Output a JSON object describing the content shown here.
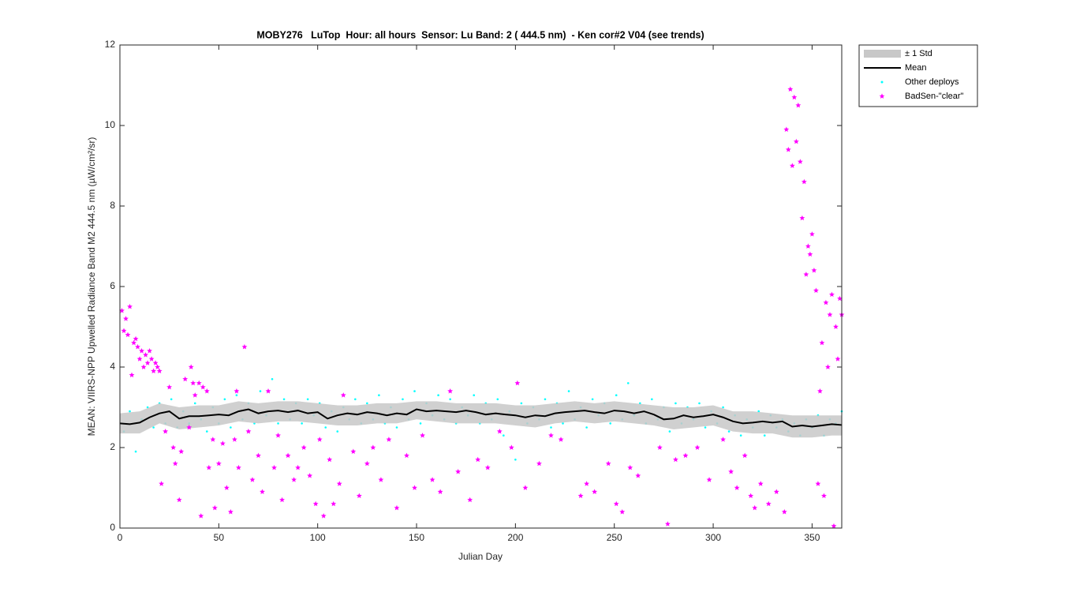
{
  "chart_data": {
    "type": "scatter",
    "title": "MOBY276   LuTop  Hour: all hours  Sensor: Lu Band: 2 ( 444.5 nm)  - Ken cor#2 V04 (see trends)",
    "x_label": "Julian Day",
    "y_label": "MEAN: VIIRS-NPP Upwelled Radiance Band M2 444.5 nm (µW/cm²/sr)",
    "xlim": [
      0,
      365
    ],
    "xticks": [
      0,
      50,
      100,
      150,
      200,
      250,
      300,
      350
    ],
    "ylim": [
      0,
      12
    ],
    "yticks": [
      0,
      2,
      4,
      6,
      8,
      10,
      12
    ],
    "legend": "outside-northeast",
    "series": [
      {
        "name": "± 1 Std",
        "type": "band",
        "color": "#c8c8c8",
        "x": [
          0,
          10,
          20,
          30,
          40,
          50,
          60,
          70,
          80,
          90,
          100,
          110,
          120,
          130,
          140,
          150,
          160,
          170,
          180,
          190,
          200,
          210,
          220,
          230,
          240,
          250,
          260,
          270,
          280,
          290,
          300,
          310,
          320,
          330,
          340,
          350,
          360,
          365
        ],
        "upper": [
          2.85,
          2.9,
          3.1,
          3.0,
          3.05,
          3.05,
          3.15,
          3.1,
          3.15,
          3.15,
          3.1,
          3.05,
          3.05,
          3.1,
          3.1,
          3.15,
          3.15,
          3.1,
          3.1,
          3.1,
          3.05,
          3.05,
          3.1,
          3.15,
          3.1,
          3.15,
          3.1,
          3.05,
          3.0,
          3.0,
          3.05,
          2.9,
          2.9,
          2.85,
          2.8,
          2.8,
          2.8,
          2.8
        ],
        "lower": [
          2.35,
          2.35,
          2.6,
          2.45,
          2.5,
          2.55,
          2.65,
          2.6,
          2.65,
          2.65,
          2.6,
          2.55,
          2.55,
          2.6,
          2.6,
          2.7,
          2.65,
          2.6,
          2.6,
          2.6,
          2.55,
          2.5,
          2.6,
          2.65,
          2.6,
          2.65,
          2.6,
          2.55,
          2.45,
          2.5,
          2.55,
          2.4,
          2.35,
          2.35,
          2.25,
          2.25,
          2.3,
          2.3
        ]
      },
      {
        "name": "Mean",
        "type": "line",
        "color": "#000000",
        "x": [
          0,
          5,
          10,
          15,
          20,
          25,
          30,
          35,
          40,
          45,
          50,
          55,
          60,
          65,
          70,
          75,
          80,
          85,
          90,
          95,
          100,
          105,
          110,
          115,
          120,
          125,
          130,
          135,
          140,
          145,
          150,
          155,
          160,
          165,
          170,
          175,
          180,
          185,
          190,
          195,
          200,
          205,
          210,
          215,
          220,
          225,
          230,
          235,
          240,
          245,
          250,
          255,
          260,
          265,
          270,
          275,
          280,
          285,
          290,
          295,
          300,
          305,
          310,
          315,
          320,
          325,
          330,
          335,
          340,
          345,
          350,
          355,
          360,
          365
        ],
        "values": [
          2.6,
          2.58,
          2.62,
          2.75,
          2.85,
          2.9,
          2.72,
          2.78,
          2.78,
          2.8,
          2.82,
          2.8,
          2.9,
          2.95,
          2.85,
          2.9,
          2.92,
          2.88,
          2.92,
          2.85,
          2.88,
          2.72,
          2.8,
          2.85,
          2.82,
          2.88,
          2.85,
          2.8,
          2.85,
          2.82,
          2.95,
          2.9,
          2.92,
          2.9,
          2.88,
          2.92,
          2.88,
          2.82,
          2.85,
          2.82,
          2.8,
          2.75,
          2.8,
          2.78,
          2.85,
          2.88,
          2.9,
          2.92,
          2.88,
          2.85,
          2.92,
          2.9,
          2.85,
          2.9,
          2.82,
          2.7,
          2.72,
          2.8,
          2.75,
          2.78,
          2.82,
          2.75,
          2.65,
          2.6,
          2.62,
          2.65,
          2.62,
          2.65,
          2.52,
          2.55,
          2.52,
          2.55,
          2.58,
          2.56
        ]
      },
      {
        "name": "Other deploys",
        "type": "points",
        "color": "#00ffff",
        "x": [
          2,
          5,
          8,
          11,
          14,
          17,
          20,
          23,
          26,
          29,
          32,
          35,
          38,
          41,
          44,
          47,
          50,
          53,
          56,
          59,
          62,
          65,
          68,
          71,
          74,
          77,
          80,
          83,
          86,
          89,
          92,
          95,
          98,
          101,
          104,
          107,
          110,
          113,
          116,
          119,
          122,
          125,
          128,
          131,
          134,
          137,
          140,
          143,
          146,
          149,
          152,
          155,
          158,
          161,
          164,
          167,
          170,
          173,
          176,
          179,
          182,
          185,
          188,
          191,
          194,
          197,
          200,
          203,
          206,
          209,
          212,
          215,
          218,
          221,
          224,
          227,
          230,
          233,
          236,
          239,
          242,
          245,
          248,
          251,
          254,
          257,
          260,
          263,
          266,
          269,
          272,
          275,
          278,
          281,
          284,
          287,
          290,
          293,
          296,
          299,
          302,
          305,
          308,
          311,
          314,
          317,
          320,
          323,
          326,
          329,
          332,
          335,
          338,
          341,
          344,
          347,
          350,
          353,
          356,
          359,
          362,
          365
        ],
        "values": [
          2.4,
          2.9,
          1.9,
          2.7,
          3.0,
          2.5,
          3.1,
          2.6,
          3.2,
          2.5,
          2.9,
          2.6,
          3.1,
          2.7,
          2.4,
          3.0,
          2.6,
          3.2,
          2.5,
          3.3,
          2.7,
          3.1,
          2.6,
          3.4,
          2.8,
          3.7,
          2.6,
          3.2,
          2.7,
          3.1,
          2.6,
          3.2,
          2.8,
          3.1,
          2.5,
          2.9,
          2.4,
          3.0,
          2.7,
          3.2,
          2.6,
          3.1,
          2.7,
          3.3,
          2.6,
          3.0,
          2.5,
          3.2,
          2.7,
          3.4,
          2.6,
          3.1,
          2.8,
          3.3,
          2.7,
          3.2,
          2.6,
          3.0,
          2.8,
          3.3,
          2.6,
          3.1,
          2.7,
          3.2,
          2.3,
          2.9,
          1.7,
          3.1,
          2.6,
          3.0,
          2.7,
          3.2,
          2.5,
          3.1,
          2.6,
          3.4,
          2.7,
          3.0,
          2.5,
          3.2,
          2.8,
          3.1,
          2.6,
          3.3,
          2.7,
          3.6,
          2.8,
          3.1,
          2.6,
          3.2,
          2.7,
          3.0,
          2.4,
          3.1,
          2.6,
          3.0,
          2.7,
          3.1,
          2.5,
          2.9,
          2.6,
          3.0,
          2.4,
          2.8,
          2.3,
          2.7,
          2.5,
          2.9,
          2.3,
          2.8,
          2.5,
          2.7,
          2.4,
          2.6,
          2.3,
          2.7,
          2.5,
          2.8,
          2.3,
          2.7,
          2.6,
          2.9
        ]
      },
      {
        "name": "BadSen-\"clear\"",
        "type": "stars",
        "color": "#ff00ff",
        "x": [
          1,
          2,
          3,
          4,
          5,
          6,
          7,
          8,
          9,
          10,
          11,
          12,
          13,
          14,
          15,
          16,
          17,
          18,
          19,
          20,
          21,
          23,
          25,
          27,
          28,
          30,
          31,
          33,
          35,
          36,
          37,
          38,
          40,
          41,
          42,
          44,
          45,
          47,
          48,
          50,
          52,
          54,
          56,
          58,
          59,
          60,
          63,
          65,
          67,
          70,
          72,
          75,
          78,
          80,
          82,
          85,
          88,
          90,
          93,
          96,
          99,
          101,
          103,
          106,
          108,
          111,
          113,
          118,
          121,
          125,
          128,
          132,
          136,
          140,
          145,
          149,
          153,
          158,
          162,
          167,
          171,
          177,
          181,
          186,
          192,
          198,
          201,
          205,
          212,
          218,
          223,
          233,
          236,
          240,
          247,
          251,
          254,
          258,
          262,
          273,
          277,
          281,
          286,
          292,
          298,
          305,
          309,
          312,
          316,
          319,
          321,
          324,
          328,
          332,
          336,
          337,
          338,
          339,
          340,
          341,
          342,
          343,
          344,
          345,
          346,
          347,
          348,
          349,
          350,
          351,
          352,
          353,
          354,
          355,
          356,
          357,
          358,
          359,
          360,
          361,
          362,
          363,
          364,
          365
        ],
        "values": [
          5.4,
          4.9,
          5.2,
          4.8,
          5.5,
          3.8,
          4.6,
          4.7,
          4.5,
          4.2,
          4.4,
          4.0,
          4.3,
          4.1,
          4.4,
          4.2,
          3.9,
          4.1,
          4.0,
          3.9,
          1.1,
          2.4,
          3.5,
          2.0,
          1.6,
          0.7,
          1.9,
          3.7,
          2.5,
          4.0,
          3.6,
          3.3,
          3.6,
          0.3,
          3.5,
          3.4,
          1.5,
          2.2,
          0.5,
          1.6,
          2.1,
          1.0,
          0.4,
          2.2,
          3.4,
          1.5,
          4.5,
          2.4,
          1.2,
          1.8,
          0.9,
          3.4,
          1.5,
          2.3,
          0.7,
          1.8,
          1.2,
          1.5,
          2.0,
          1.3,
          0.6,
          2.2,
          0.3,
          1.7,
          0.6,
          1.1,
          3.3,
          1.9,
          0.8,
          1.6,
          2.0,
          1.2,
          2.2,
          0.5,
          1.8,
          1.0,
          2.3,
          1.2,
          0.9,
          3.4,
          1.4,
          0.7,
          1.7,
          1.5,
          2.4,
          2.0,
          3.6,
          1.0,
          1.6,
          2.3,
          2.2,
          0.8,
          1.1,
          0.9,
          1.6,
          0.6,
          0.4,
          1.5,
          1.3,
          2.0,
          0.1,
          1.7,
          1.8,
          2.0,
          1.2,
          2.2,
          1.4,
          1.0,
          1.8,
          0.8,
          0.5,
          1.1,
          0.6,
          0.9,
          0.4,
          9.9,
          9.4,
          10.9,
          9.0,
          10.7,
          9.6,
          10.5,
          9.1,
          7.7,
          8.6,
          6.3,
          7.0,
          6.8,
          7.3,
          6.4,
          5.9,
          1.1,
          3.4,
          4.6,
          0.8,
          5.6,
          4.0,
          5.3,
          5.8,
          0.05,
          5.0,
          4.2,
          5.7,
          5.3
        ]
      }
    ]
  }
}
